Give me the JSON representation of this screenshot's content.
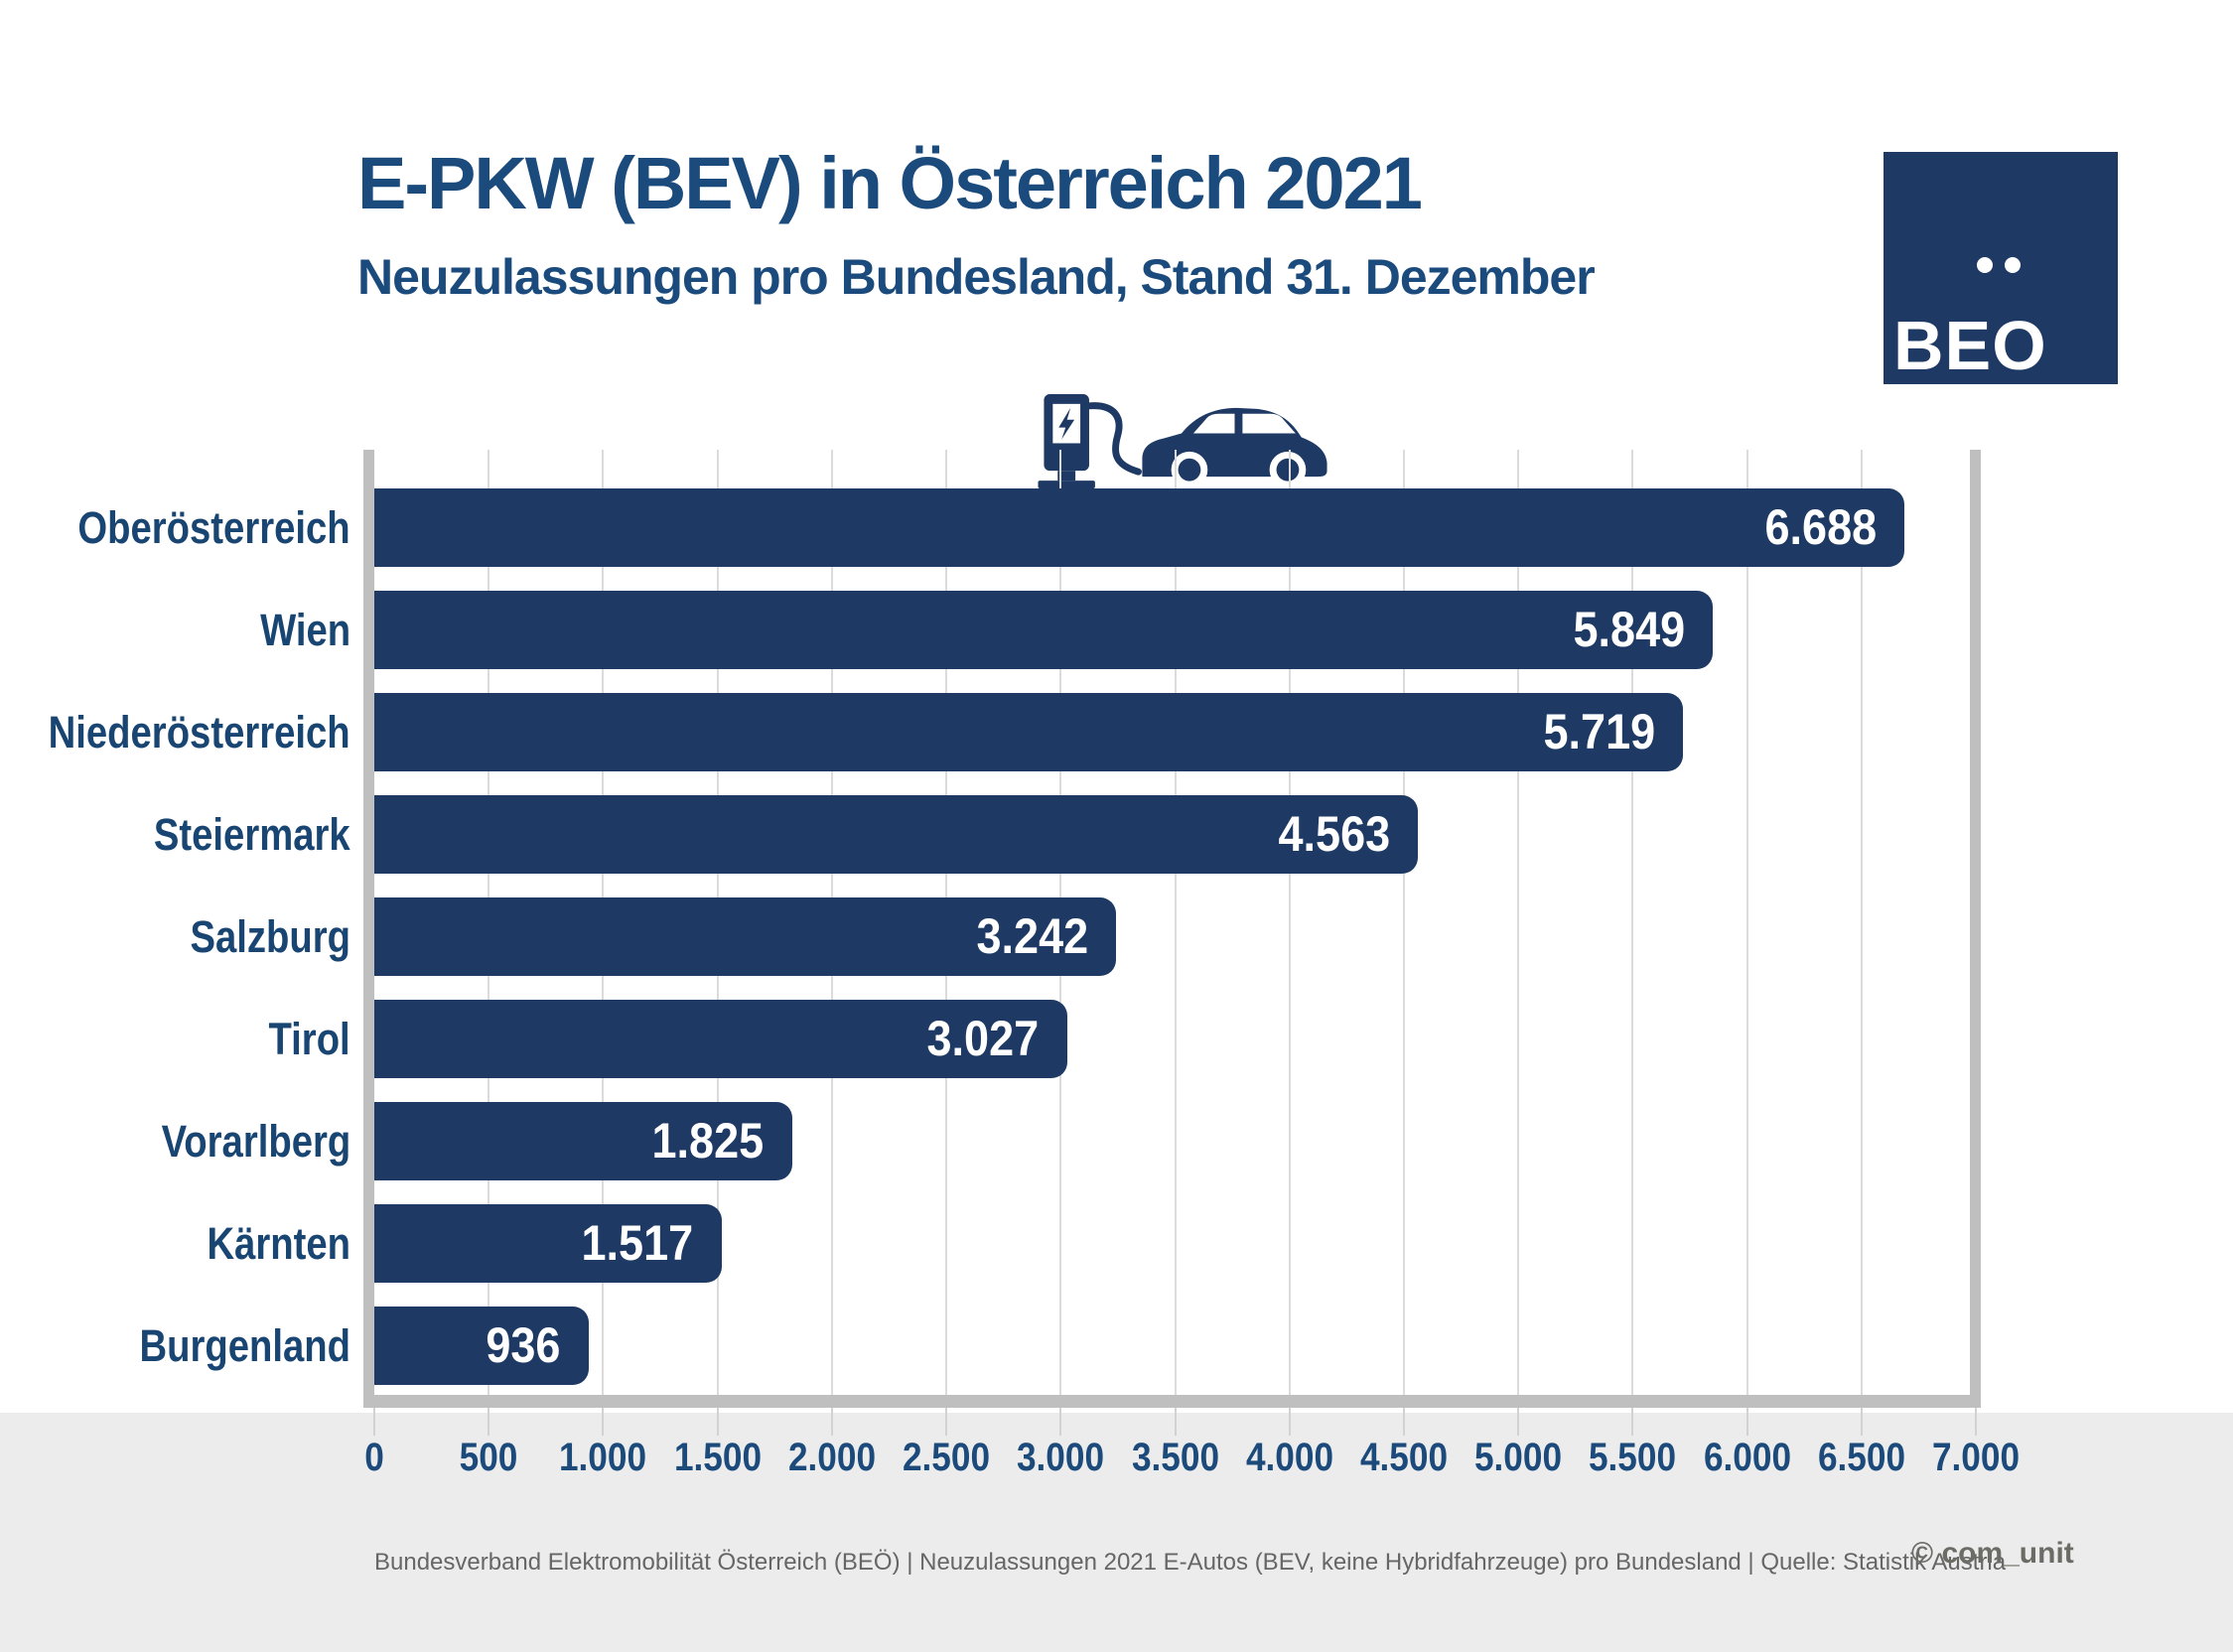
{
  "title": "E-PKW (BEV) in Österreich 2021",
  "subtitle": "Neuzulassungen pro Bundesland, Stand 31. Dezember",
  "logo": {
    "text": "BEO"
  },
  "footer": {
    "source_line": "Bundesverband Elektromobilität Österreich (BEÖ) | Neuzulassungen 2021 E-Autos (BEV, keine Hybridfahrzeuge) pro Bundesland | Quelle: Statistik Austria",
    "copyright": "© com_unit"
  },
  "colors": {
    "bar_navy": "#1E3A64",
    "title_blue": "#1B4B7D",
    "label_blue": "#194573",
    "tick_blue": "#1B4A7B",
    "axis_gray": "#BFBFBF",
    "gridline_gray": "#DBDBDB",
    "band_gray": "#ECECEC",
    "footer_gray": "#666666"
  },
  "icons": {
    "car_charging": "ev-car-charging-icon"
  },
  "chart_data": {
    "type": "bar",
    "orientation": "horizontal",
    "title": "E-PKW (BEV) in Österreich 2021",
    "subtitle": "Neuzulassungen pro Bundesland, Stand 31. Dezember",
    "categories": [
      "Oberösterreich",
      "Wien",
      "Niederösterreich",
      "Steiermark",
      "Salzburg",
      "Tirol",
      "Vorarlberg",
      "Kärnten",
      "Burgenland"
    ],
    "values": [
      6688,
      5849,
      5719,
      4563,
      3242,
      3027,
      1825,
      1517,
      936
    ],
    "value_labels": [
      "6.688",
      "5.849",
      "5.719",
      "4.563",
      "3.242",
      "3.027",
      "1.825",
      "1.517",
      "936"
    ],
    "xlabel": "",
    "ylabel": "",
    "xlim": [
      0,
      7000
    ],
    "xticks": [
      0,
      500,
      1000,
      1500,
      2000,
      2500,
      3000,
      3500,
      4000,
      4500,
      5000,
      5500,
      6000,
      6500,
      7000
    ],
    "xtick_labels": [
      "0",
      "500",
      "1.000",
      "1.500",
      "2.000",
      "2.500",
      "3.000",
      "3.500",
      "4.000",
      "4.500",
      "5.000",
      "5.500",
      "6.000",
      "6.500",
      "7.000"
    ],
    "grid": true,
    "legend": false
  }
}
